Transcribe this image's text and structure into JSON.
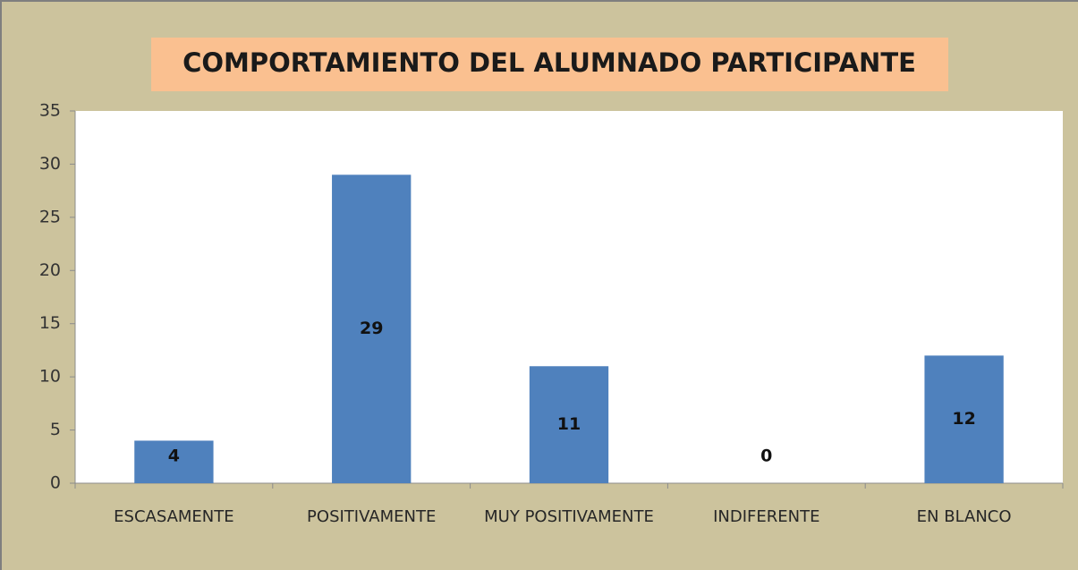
{
  "chart_data": {
    "type": "bar",
    "title": "COMPORTAMIENTO DEL ALUMNADO PARTICIPANTE",
    "categories": [
      "ESCASAMENTE",
      "POSITIVAMENTE",
      "MUY POSITIVAMENTE",
      "INDIFERENTE",
      "EN BLANCO"
    ],
    "values": [
      4,
      29,
      11,
      0,
      12
    ],
    "color": "#4f81bd",
    "ylim": [
      0,
      35
    ],
    "yticks": [
      0,
      5,
      10,
      15,
      20,
      25,
      30,
      35
    ],
    "grid": false
  }
}
